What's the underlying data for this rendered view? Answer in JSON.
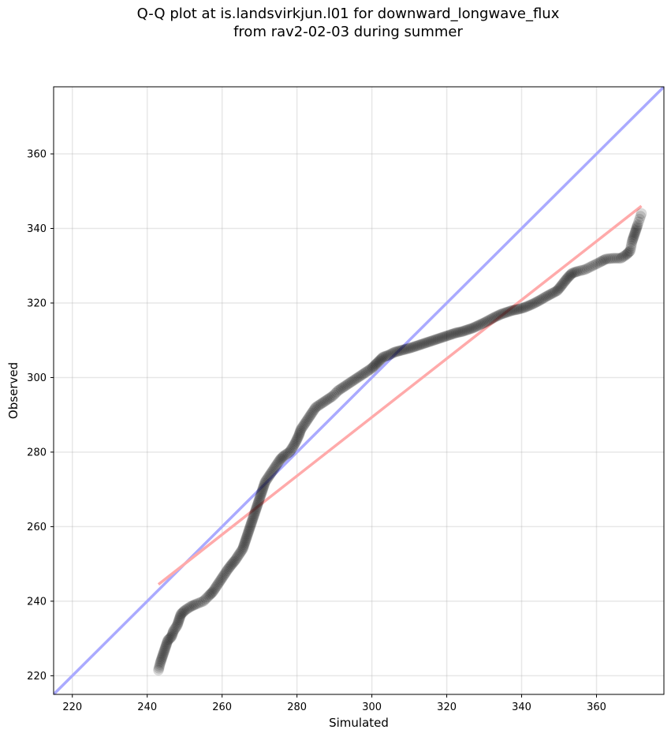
{
  "chart_data": {
    "type": "scatter",
    "title_line1": "Q-Q plot at is.landsvirkjun.l01 for downward_longwave_flux",
    "title_line2": "from rav2-02-03 during summer",
    "xlabel": "Simulated",
    "ylabel": "Observed",
    "xlim": [
      215,
      378
    ],
    "ylim": [
      215,
      378
    ],
    "xticks": [
      220,
      240,
      260,
      280,
      300,
      320,
      340,
      360
    ],
    "yticks": [
      220,
      240,
      260,
      280,
      300,
      320,
      340,
      360
    ],
    "grid": true,
    "reference_lines": [
      {
        "label": "",
        "color": "#aaaaff",
        "x": [
          215,
          378
        ],
        "y": [
          215,
          378
        ]
      },
      {
        "label": "",
        "color": "#ffaaaa",
        "x": [
          243,
          372
        ],
        "y": [
          244.5,
          346
        ]
      }
    ],
    "point_color": "#000000",
    "quantiles": [
      {
        "x": 243.0,
        "y": 221.5
      },
      {
        "x": 243.5,
        "y": 223.5
      },
      {
        "x": 244.0,
        "y": 225.0
      },
      {
        "x": 244.5,
        "y": 226.5
      },
      {
        "x": 245.0,
        "y": 228.0
      },
      {
        "x": 245.5,
        "y": 229.5
      },
      {
        "x": 246.5,
        "y": 230.5
      },
      {
        "x": 247.0,
        "y": 232.0
      },
      {
        "x": 248.0,
        "y": 233.5
      },
      {
        "x": 248.5,
        "y": 235.0
      },
      {
        "x": 249.0,
        "y": 236.5
      },
      {
        "x": 250.0,
        "y": 237.5
      },
      {
        "x": 251.5,
        "y": 238.5
      },
      {
        "x": 253.0,
        "y": 239.2
      },
      {
        "x": 255.0,
        "y": 240.0
      },
      {
        "x": 256.5,
        "y": 241.5
      },
      {
        "x": 257.5,
        "y": 242.5
      },
      {
        "x": 258.5,
        "y": 244.0
      },
      {
        "x": 259.5,
        "y": 245.5
      },
      {
        "x": 260.5,
        "y": 247.0
      },
      {
        "x": 261.5,
        "y": 248.5
      },
      {
        "x": 262.5,
        "y": 249.8
      },
      {
        "x": 263.5,
        "y": 251.0
      },
      {
        "x": 264.5,
        "y": 252.5
      },
      {
        "x": 265.5,
        "y": 254.0
      },
      {
        "x": 266.0,
        "y": 255.5
      },
      {
        "x": 266.5,
        "y": 257.0
      },
      {
        "x": 267.0,
        "y": 258.5
      },
      {
        "x": 267.5,
        "y": 260.0
      },
      {
        "x": 268.0,
        "y": 261.5
      },
      {
        "x": 268.5,
        "y": 263.0
      },
      {
        "x": 269.0,
        "y": 264.5
      },
      {
        "x": 269.5,
        "y": 266.0
      },
      {
        "x": 270.0,
        "y": 267.5
      },
      {
        "x": 270.5,
        "y": 269.0
      },
      {
        "x": 271.0,
        "y": 270.5
      },
      {
        "x": 271.5,
        "y": 272.0
      },
      {
        "x": 272.5,
        "y": 273.5
      },
      {
        "x": 273.5,
        "y": 275.0
      },
      {
        "x": 274.5,
        "y": 276.5
      },
      {
        "x": 275.5,
        "y": 278.0
      },
      {
        "x": 276.5,
        "y": 279.0
      },
      {
        "x": 278.0,
        "y": 280.0
      },
      {
        "x": 279.0,
        "y": 281.5
      },
      {
        "x": 279.8,
        "y": 283.0
      },
      {
        "x": 280.5,
        "y": 284.5
      },
      {
        "x": 281.0,
        "y": 286.0
      },
      {
        "x": 282.0,
        "y": 287.5
      },
      {
        "x": 283.0,
        "y": 289.0
      },
      {
        "x": 284.0,
        "y": 290.5
      },
      {
        "x": 285.0,
        "y": 292.0
      },
      {
        "x": 286.5,
        "y": 293.0
      },
      {
        "x": 288.0,
        "y": 294.0
      },
      {
        "x": 289.5,
        "y": 295.0
      },
      {
        "x": 291.0,
        "y": 296.5
      },
      {
        "x": 292.5,
        "y": 297.5
      },
      {
        "x": 294.0,
        "y": 298.5
      },
      {
        "x": 295.5,
        "y": 299.5
      },
      {
        "x": 297.0,
        "y": 300.5
      },
      {
        "x": 298.5,
        "y": 301.5
      },
      {
        "x": 300.0,
        "y": 302.5
      },
      {
        "x": 301.0,
        "y": 303.5
      },
      {
        "x": 302.0,
        "y": 304.5
      },
      {
        "x": 303.0,
        "y": 305.5
      },
      {
        "x": 304.5,
        "y": 306.0
      },
      {
        "x": 306.0,
        "y": 306.8
      },
      {
        "x": 307.5,
        "y": 307.2
      },
      {
        "x": 309.0,
        "y": 307.6
      },
      {
        "x": 310.5,
        "y": 308.0
      },
      {
        "x": 312.0,
        "y": 308.5
      },
      {
        "x": 313.5,
        "y": 309.0
      },
      {
        "x": 315.0,
        "y": 309.5
      },
      {
        "x": 316.5,
        "y": 310.0
      },
      {
        "x": 318.0,
        "y": 310.5
      },
      {
        "x": 319.5,
        "y": 311.0
      },
      {
        "x": 321.0,
        "y": 311.5
      },
      {
        "x": 322.5,
        "y": 312.0
      },
      {
        "x": 324.0,
        "y": 312.3
      },
      {
        "x": 325.5,
        "y": 312.8
      },
      {
        "x": 327.0,
        "y": 313.3
      },
      {
        "x": 328.5,
        "y": 314.0
      },
      {
        "x": 330.0,
        "y": 314.7
      },
      {
        "x": 331.5,
        "y": 315.5
      },
      {
        "x": 333.0,
        "y": 316.3
      },
      {
        "x": 334.5,
        "y": 317.0
      },
      {
        "x": 336.0,
        "y": 317.5
      },
      {
        "x": 337.5,
        "y": 318.0
      },
      {
        "x": 339.0,
        "y": 318.3
      },
      {
        "x": 340.5,
        "y": 318.7
      },
      {
        "x": 342.0,
        "y": 319.3
      },
      {
        "x": 343.5,
        "y": 320.0
      },
      {
        "x": 345.0,
        "y": 320.8
      },
      {
        "x": 346.5,
        "y": 321.7
      },
      {
        "x": 348.0,
        "y": 322.5
      },
      {
        "x": 349.5,
        "y": 323.3
      },
      {
        "x": 350.5,
        "y": 324.5
      },
      {
        "x": 351.5,
        "y": 325.8
      },
      {
        "x": 352.5,
        "y": 327.0
      },
      {
        "x": 353.5,
        "y": 328.0
      },
      {
        "x": 355.0,
        "y": 328.5
      },
      {
        "x": 357.0,
        "y": 329.0
      },
      {
        "x": 359.0,
        "y": 330.0
      },
      {
        "x": 361.0,
        "y": 331.0
      },
      {
        "x": 362.5,
        "y": 331.8
      },
      {
        "x": 364.5,
        "y": 332.0
      },
      {
        "x": 366.5,
        "y": 332.0
      },
      {
        "x": 368.0,
        "y": 333.0
      },
      {
        "x": 369.0,
        "y": 334.0
      },
      {
        "x": 369.5,
        "y": 336.5
      },
      {
        "x": 370.0,
        "y": 338.0
      },
      {
        "x": 370.5,
        "y": 339.5
      },
      {
        "x": 371.0,
        "y": 341.0
      },
      {
        "x": 372.0,
        "y": 344.0
      }
    ]
  }
}
